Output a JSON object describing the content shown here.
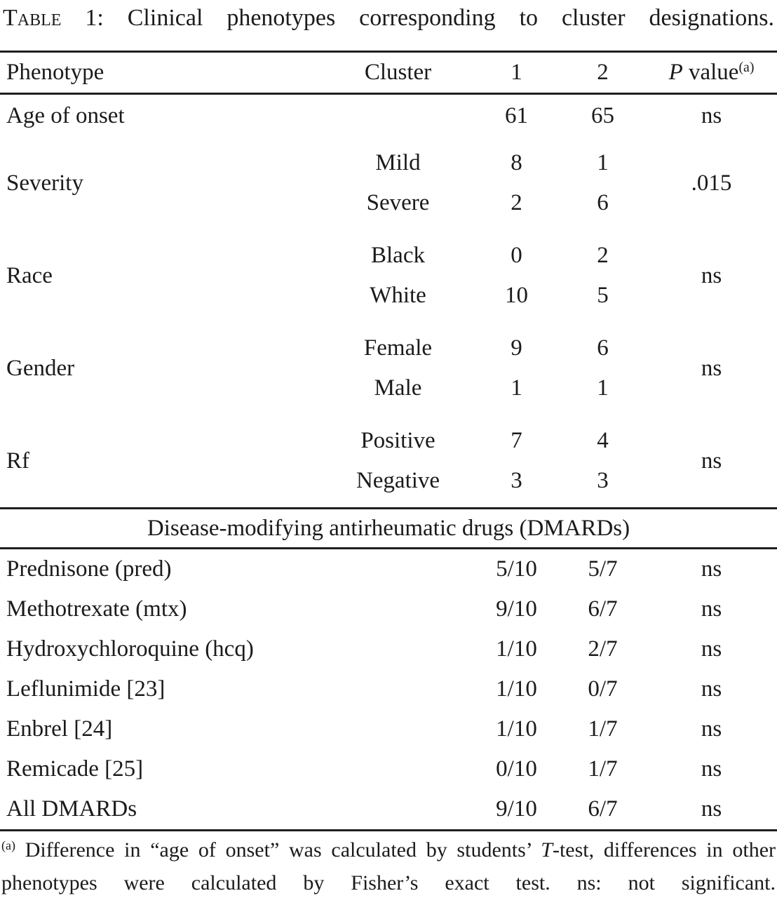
{
  "title": {
    "smallcaps": "Table",
    "rest": " 1: Clinical phenotypes corresponding to cluster designations."
  },
  "header": {
    "phenotype": "Phenotype",
    "cluster": "Cluster",
    "col1": "1",
    "col2": "2",
    "p_italic": "P",
    "p_rest": " value",
    "p_sup": "(a)"
  },
  "age_row": {
    "label": "Age of onset",
    "v1": "61",
    "v2": "65",
    "p": "ns"
  },
  "groups": [
    {
      "label": "Severity",
      "p": ".015",
      "rows": [
        {
          "sub": "Mild",
          "v1": "8",
          "v2": "1"
        },
        {
          "sub": "Severe",
          "v1": "2",
          "v2": "6"
        }
      ]
    },
    {
      "label": "Race",
      "p": "ns",
      "rows": [
        {
          "sub": "Black",
          "v1": "0",
          "v2": "2"
        },
        {
          "sub": "White",
          "v1": "10",
          "v2": "5"
        }
      ]
    },
    {
      "label": "Gender",
      "p": "ns",
      "rows": [
        {
          "sub": "Female",
          "v1": "9",
          "v2": "6"
        },
        {
          "sub": "Male",
          "v1": "1",
          "v2": "1"
        }
      ]
    },
    {
      "label": "Rf",
      "p": "ns",
      "rows": [
        {
          "sub": "Positive",
          "v1": "7",
          "v2": "4"
        },
        {
          "sub": "Negative",
          "v1": "3",
          "v2": "3"
        }
      ]
    }
  ],
  "section_header": "Disease-modifying antirheumatic drugs (DMARDs)",
  "drugs": [
    {
      "label": "Prednisone (pred)",
      "v1": "5/10",
      "v2": "5/7",
      "p": "ns"
    },
    {
      "label": "Methotrexate (mtx)",
      "v1": "9/10",
      "v2": "6/7",
      "p": "ns"
    },
    {
      "label": "Hydroxychloroquine (hcq)",
      "v1": "1/10",
      "v2": "2/7",
      "p": "ns"
    },
    {
      "label": "Leflunimide [23]",
      "v1": "1/10",
      "v2": "0/7",
      "p": "ns"
    },
    {
      "label": "Enbrel [24]",
      "v1": "1/10",
      "v2": "1/7",
      "p": "ns"
    },
    {
      "label": "Remicade [25]",
      "v1": "0/10",
      "v2": "1/7",
      "p": "ns"
    },
    {
      "label": "All DMARDs",
      "v1": "9/10",
      "v2": "6/7",
      "p": "ns"
    }
  ],
  "footnote": {
    "marker": "(a)",
    "part1": " Difference in “age of onset” was calculated by students’ ",
    "t_italic": "T",
    "part2": "-test, differences in other phenotypes were calculated by Fisher’s exact test. ns: not significant."
  }
}
